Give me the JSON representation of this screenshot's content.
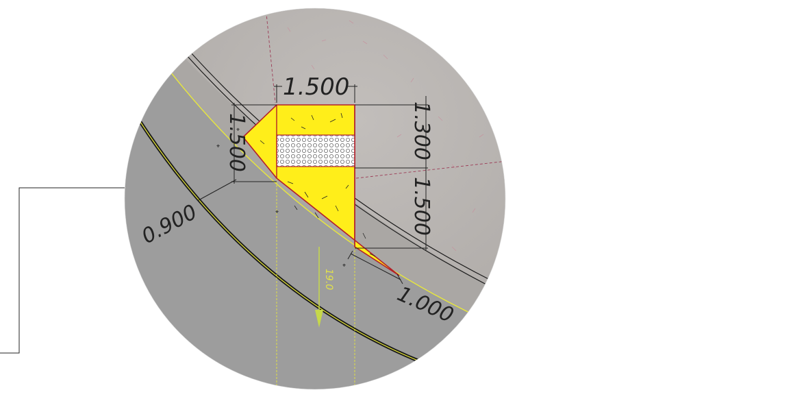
{
  "detail": {
    "dimensions": {
      "top_width": "1.500",
      "right_upper_height": "1.300",
      "right_lower_height": "1.500",
      "left_height": "1.500",
      "curb_offset": "0.900",
      "bottom_offset": "1.000"
    },
    "road_marking": "19.0",
    "colors": {
      "fill_yellow": "#ffee1a",
      "outline_red": "#b3202a",
      "road_gray": "#9d9d9d",
      "ground_gray": "#b4b0ad",
      "curb_yellow": "#e8e83c",
      "edge_line": "#1a1a1a"
    }
  }
}
